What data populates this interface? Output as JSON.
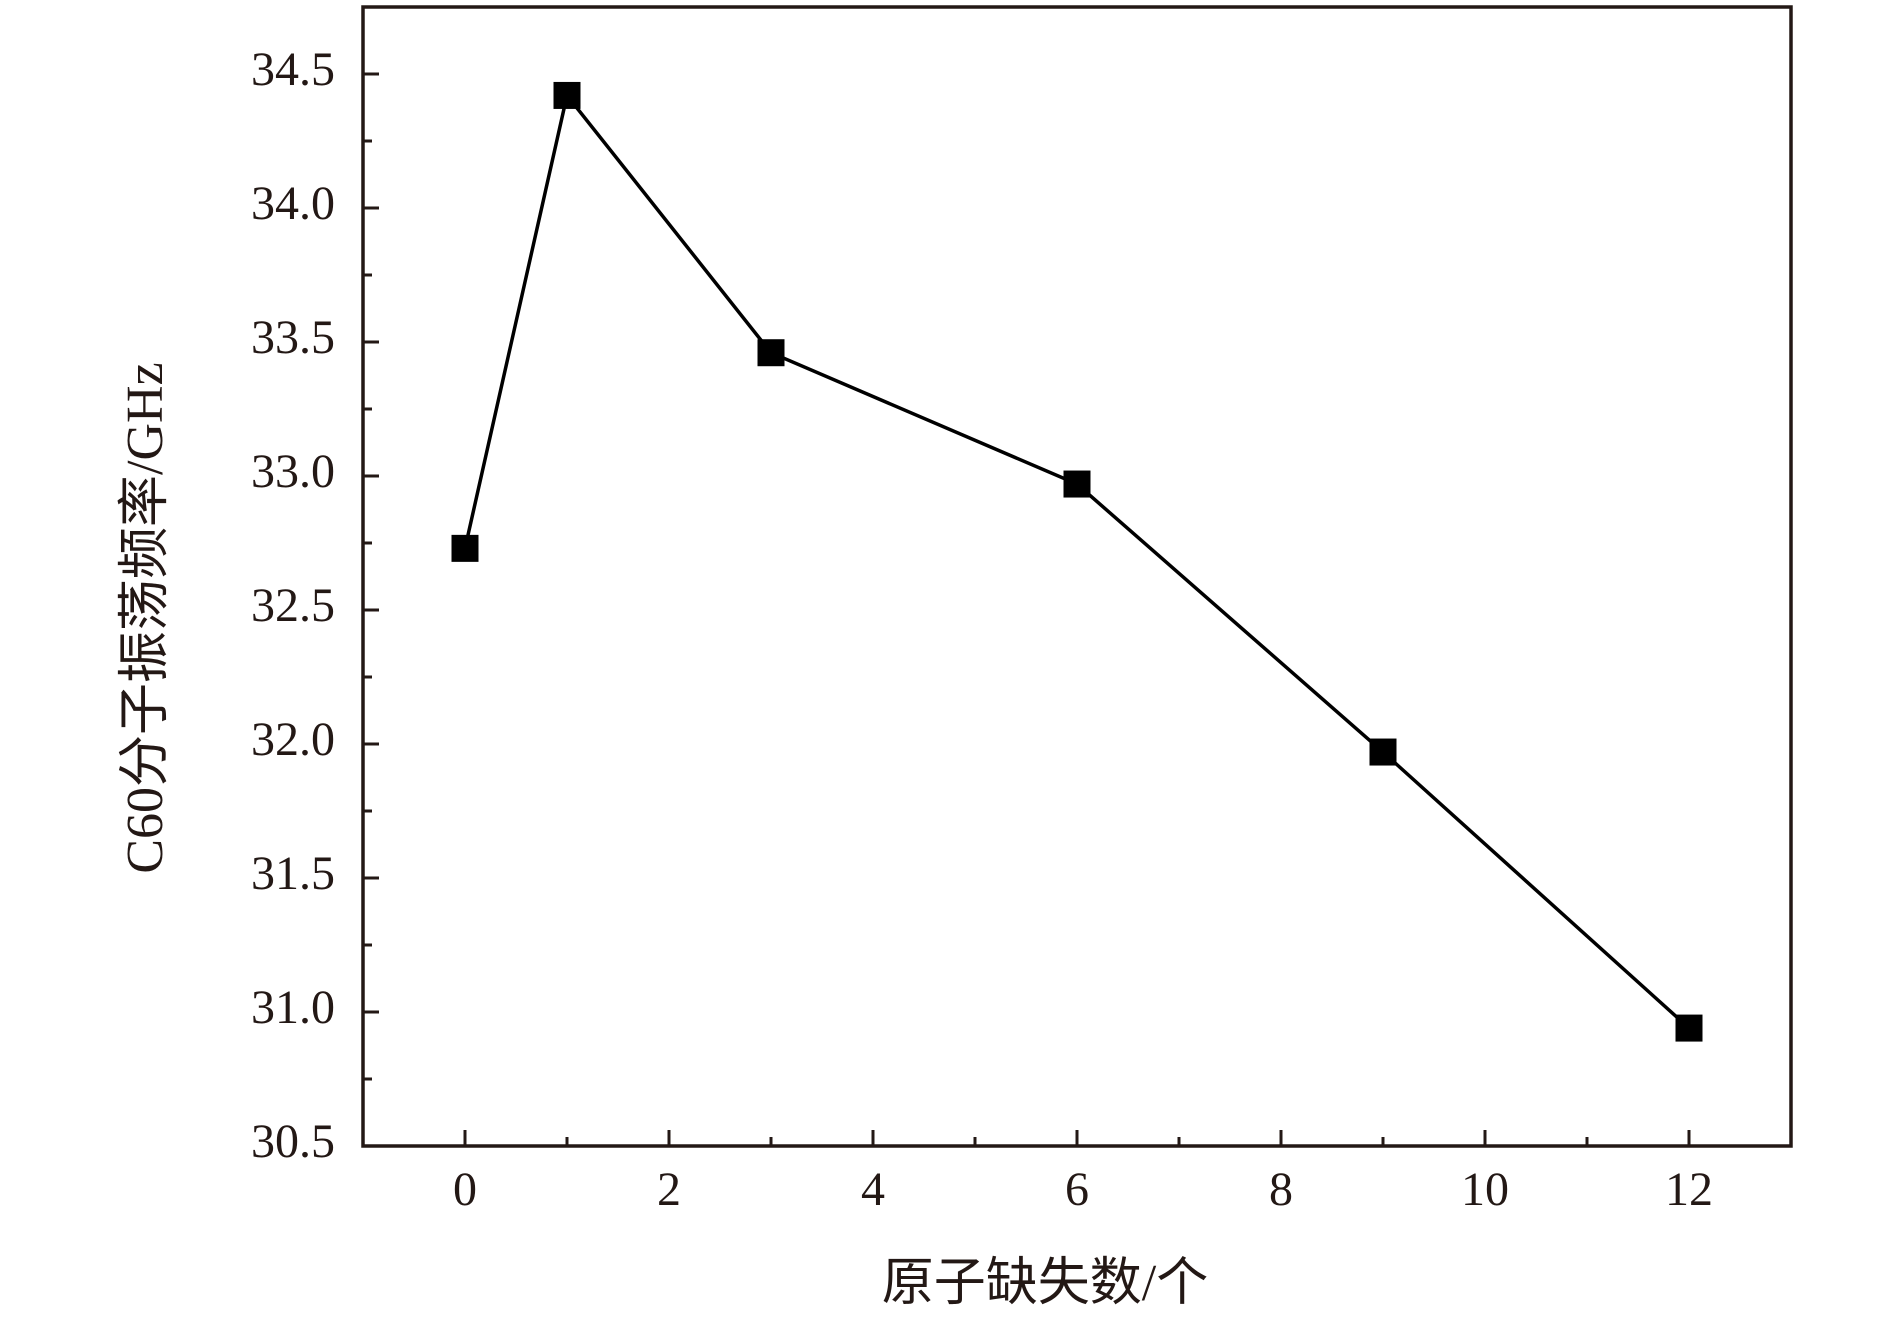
{
  "chart_data": {
    "type": "line",
    "x_label": "原子缺失数/个",
    "y_label": "C60分子振荡频率/GHz",
    "x": [
      0,
      1,
      3,
      6,
      9,
      12
    ],
    "series": [
      {
        "color": "#000000",
        "values": [
          32.73,
          34.42,
          33.46,
          32.97,
          31.97,
          30.94
        ]
      }
    ],
    "xlim": [
      -1,
      13
    ],
    "xticks": [
      0,
      2,
      4,
      6,
      8,
      10,
      12
    ],
    "xminorticks": [
      1,
      3,
      5,
      7,
      9,
      11
    ],
    "ylim": [
      30.5,
      34.75
    ],
    "yticks": [
      30.5,
      {
        "value": 31,
        "label": "31.0"
      },
      31.5,
      {
        "value": 32,
        "label": "32.0"
      },
      32.5,
      {
        "value": 33,
        "label": "33.0"
      },
      33.5,
      {
        "value": 34,
        "label": "34.0"
      },
      34.5
    ],
    "yminorticks": [
      30.75,
      31.25,
      31.75,
      32.25,
      32.75,
      33.25,
      33.75,
      34.25
    ],
    "grid": false,
    "marker": "square"
  }
}
